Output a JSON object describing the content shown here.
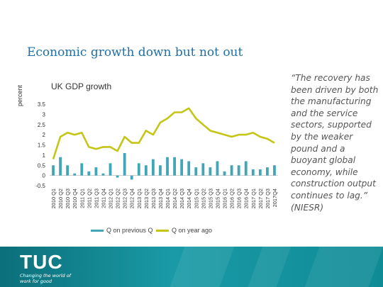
{
  "slide": {
    "title": "Economic growth down but not out",
    "quote": "“The recovery has been driven by both the manufacturing and the service sectors, supported by the weaker pound and a buoyant global economy, while construction output continues to lag.” (NIESR)"
  },
  "footer": {
    "logo_text": "TUC",
    "tagline": "Changing the world of work for good",
    "colors": {
      "dark": "#0c6f7a",
      "light": "#199aa6"
    }
  },
  "chart_data": {
    "type": "bar",
    "title": "UK GDP growth",
    "ylabel": "percent",
    "xlabel": "",
    "ylim": [
      -0.5,
      3.5
    ],
    "yticks": [
      -0.5,
      0,
      0.5,
      1,
      1.5,
      2,
      2.5,
      3,
      3.5
    ],
    "grid": false,
    "legend_position": "bottom",
    "categories": [
      "2010 Q1",
      "2010 Q2",
      "2010 Q3",
      "2010 Q4",
      "2011 Q1",
      "2011 Q2",
      "2011 Q3",
      "2011 Q4",
      "2012 Q1",
      "2012 Q2",
      "2012 Q3",
      "2012 Q4",
      "2013 Q1",
      "2013 Q2",
      "2013 Q3",
      "2013 Q4",
      "2014 Q1",
      "2014 Q2",
      "2014 Q3",
      "2014 Q4",
      "2015 Q1",
      "2015 Q2",
      "2015 Q3",
      "2015 Q4",
      "2016 Q1",
      "2016 Q2",
      "2016 Q3",
      "2016 Q4",
      "2017 Q1",
      "2017 Q2",
      "2017 Q3",
      "2017Q4"
    ],
    "series": [
      {
        "name": "Q on previous Q",
        "type": "bar",
        "color": "#41a7b6",
        "values": [
          0.5,
          0.9,
          0.5,
          0.1,
          0.6,
          0.2,
          0.4,
          0.1,
          0.6,
          -0.1,
          1.1,
          -0.2,
          0.6,
          0.5,
          0.8,
          0.5,
          0.9,
          0.9,
          0.8,
          0.7,
          0.4,
          0.6,
          0.4,
          0.7,
          0.2,
          0.5,
          0.5,
          0.7,
          0.3,
          0.3,
          0.4,
          0.5
        ]
      },
      {
        "name": "Q on year ago",
        "type": "line",
        "color": "#c5c516",
        "values": [
          0.8,
          1.9,
          2.1,
          2.0,
          2.1,
          1.4,
          1.3,
          1.4,
          1.4,
          1.2,
          1.9,
          1.6,
          1.6,
          2.2,
          2.0,
          2.6,
          2.8,
          3.1,
          3.1,
          3.3,
          2.8,
          2.5,
          2.2,
          2.1,
          2.0,
          1.9,
          2.0,
          2.0,
          2.1,
          1.9,
          1.8,
          1.6
        ]
      }
    ]
  }
}
